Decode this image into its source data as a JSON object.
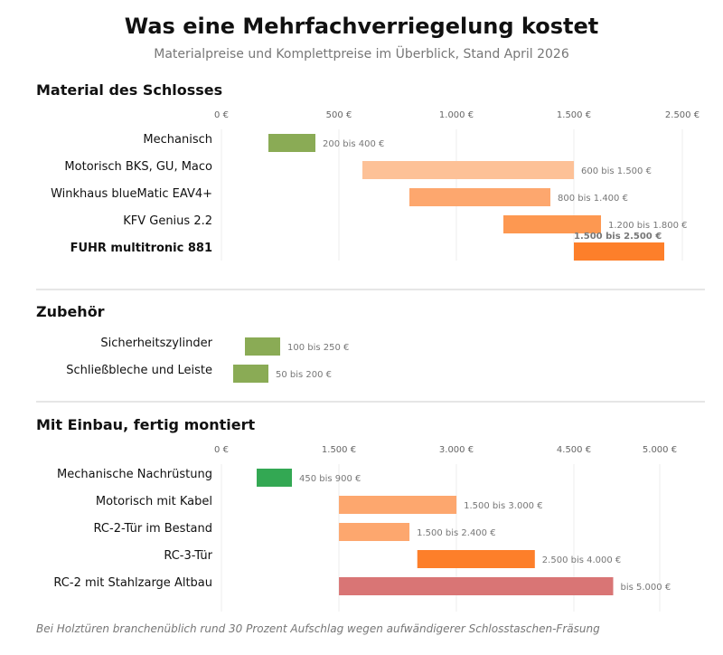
{
  "header": {
    "title": "Was eine Mehrfachverriegelung kostet",
    "subtitle": "Materialpreise und Komplettpreise im Überblick, Stand April 2026"
  },
  "footer": {
    "note": "Bei Holztüren branchenüblich rund 30 Prozent Aufschlag wegen aufwändigerer Schlosstaschen-Fräsung"
  },
  "colors": {
    "green_olive": "#8aab55",
    "green": "#33a853",
    "orange_light": "#fdc197",
    "orange_mid": "#fda76e",
    "orange": "#fd9851",
    "orange_dark": "#fd7f2a",
    "red": "#d97575"
  },
  "chart_data": [
    {
      "type": "bar",
      "subtype": "range",
      "title": "Material des Schlosses",
      "xlim": [
        0,
        2500
      ],
      "ticks": [
        0,
        500,
        1000,
        1500,
        2500
      ],
      "tick_labels": [
        "0 €",
        "500 €",
        "1.000 €",
        "1.500 €",
        "2.500 €"
      ],
      "grid": true,
      "categories": [
        "Mechanisch",
        "Motorisch BKS, GU, Maco",
        "Winkhaus blueMatic EAV4+",
        "KFV Genius 2.2",
        "FUHR multitronic 881"
      ],
      "ranges": [
        [
          200,
          400
        ],
        [
          600,
          1500
        ],
        [
          800,
          1400
        ],
        [
          1200,
          1800
        ],
        [
          1500,
          2500
        ]
      ],
      "labels": [
        "200 bis 400 €",
        "600 bis 1.500 €",
        "800 bis 1.400 €",
        "1.200 bis 1.800 €",
        "1.500 bis 2.500 €"
      ],
      "colors": [
        "green_olive",
        "orange_light",
        "orange_mid",
        "orange",
        "orange_dark"
      ],
      "highlight": [
        false,
        false,
        false,
        false,
        true
      ]
    },
    {
      "type": "bar",
      "subtype": "range",
      "title": "Zubehör",
      "xlim": [
        0,
        2500
      ],
      "ticks": [],
      "tick_labels": [],
      "grid": false,
      "categories": [
        "Sicherheitszylinder",
        "Schließbleche und Leiste"
      ],
      "ranges": [
        [
          100,
          250
        ],
        [
          50,
          200
        ]
      ],
      "labels": [
        "100 bis 250 €",
        "50 bis 200 €"
      ],
      "colors": [
        "green_olive",
        "green_olive"
      ],
      "highlight": [
        false,
        false
      ]
    },
    {
      "type": "bar",
      "subtype": "range",
      "title": "Mit Einbau, fertig montiert",
      "xlim": [
        0,
        5000
      ],
      "ticks": [
        0,
        1500,
        3000,
        4500,
        5000
      ],
      "tick_labels": [
        "0 €",
        "1.500 €",
        "3.000 €",
        "4.500 €",
        "5.000 €"
      ],
      "grid": true,
      "categories": [
        "Mechanische Nachrüstung",
        "Motorisch mit Kabel",
        "RC-2-Tür im Bestand",
        "RC-3-Tür",
        "RC-2 mit Stahlzarge Altbau"
      ],
      "ranges": [
        [
          450,
          900
        ],
        [
          1500,
          3000
        ],
        [
          1500,
          2400
        ],
        [
          2500,
          4000
        ],
        [
          1500,
          5000
        ]
      ],
      "labels": [
        "450 bis 900 €",
        "1.500 bis 3.000 €",
        "1.500 bis 2.400 €",
        "2.500 bis 4.000 €",
        "bis 5.000 €"
      ],
      "colors": [
        "green",
        "orange_mid",
        "orange_mid",
        "orange_dark",
        "red"
      ],
      "highlight": [
        false,
        false,
        false,
        false,
        false
      ]
    }
  ]
}
